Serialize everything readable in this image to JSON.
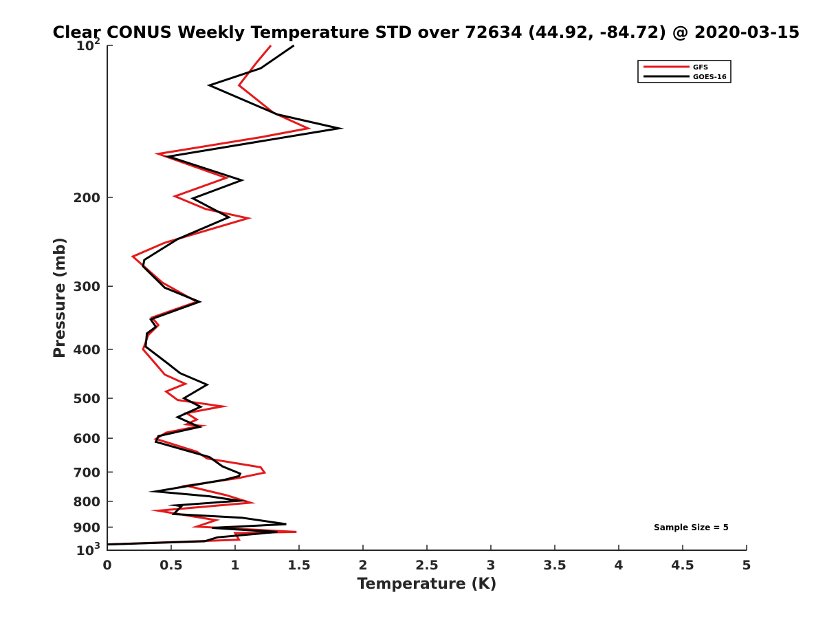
{
  "chart_data": {
    "type": "line",
    "title": "Clear CONUS Weekly Temperature STD over 72634 (44.92, -84.72) @ 2020-03-15",
    "xlabel": "Temperature (K)",
    "ylabel": "Pressure (mb)",
    "xlim": [
      0,
      5
    ],
    "ylim": [
      100,
      1000
    ],
    "y_scale": "log",
    "y_reversed": true,
    "grid": false,
    "legend_position": "top-right",
    "x_ticks": [
      "0",
      "0.5",
      "1",
      "1.5",
      "2",
      "2.5",
      "3",
      "3.5",
      "4",
      "4.5",
      "5"
    ],
    "y_ticks": [
      {
        "value": 100,
        "base": "10",
        "exp": "2"
      },
      {
        "value": 200,
        "label": "200"
      },
      {
        "value": 300,
        "label": "300"
      },
      {
        "value": 400,
        "label": "400"
      },
      {
        "value": 500,
        "label": "500"
      },
      {
        "value": 600,
        "label": "600"
      },
      {
        "value": 700,
        "label": "700"
      },
      {
        "value": 800,
        "label": "800"
      },
      {
        "value": 900,
        "label": "900"
      },
      {
        "value": 1000,
        "base": "10",
        "exp": "3"
      }
    ],
    "annotation": "Sample Size = 5",
    "series": [
      {
        "name": "GFS",
        "color": "#e41a1c",
        "points": [
          [
            1.28,
            100
          ],
          [
            1.17,
            108
          ],
          [
            1.03,
            120
          ],
          [
            1.3,
            136
          ],
          [
            1.57,
            146
          ],
          [
            1.2,
            152
          ],
          [
            0.4,
            164
          ],
          [
            0.93,
            183
          ],
          [
            0.53,
            199
          ],
          [
            0.77,
            211
          ],
          [
            1.1,
            220
          ],
          [
            0.45,
            246
          ],
          [
            0.2,
            262
          ],
          [
            0.43,
            295
          ],
          [
            0.7,
            322
          ],
          [
            0.35,
            346
          ],
          [
            0.4,
            358
          ],
          [
            0.32,
            375
          ],
          [
            0.28,
            400
          ],
          [
            0.38,
            428
          ],
          [
            0.45,
            449
          ],
          [
            0.61,
            468
          ],
          [
            0.46,
            485
          ],
          [
            0.55,
            504
          ],
          [
            0.9,
            519
          ],
          [
            0.62,
            535
          ],
          [
            0.7,
            551
          ],
          [
            0.62,
            563
          ],
          [
            0.73,
            567
          ],
          [
            0.46,
            585
          ],
          [
            0.38,
            602
          ],
          [
            0.7,
            638
          ],
          [
            0.78,
            658
          ],
          [
            1.2,
            685
          ],
          [
            1.23,
            702
          ],
          [
            1.02,
            720
          ],
          [
            0.62,
            745
          ],
          [
            0.93,
            778
          ],
          [
            1.12,
            805
          ],
          [
            0.4,
            835
          ],
          [
            0.5,
            843
          ],
          [
            0.85,
            872
          ],
          [
            0.7,
            898
          ],
          [
            1.48,
            920
          ],
          [
            1.0,
            925
          ],
          [
            1.03,
            953
          ],
          [
            0.0,
            974
          ]
        ]
      },
      {
        "name": "GOES-16",
        "color": "#000000",
        "points": [
          [
            1.46,
            100
          ],
          [
            1.2,
            111
          ],
          [
            0.8,
            120
          ],
          [
            1.33,
            137
          ],
          [
            1.81,
            146
          ],
          [
            0.48,
            166
          ],
          [
            1.05,
            185
          ],
          [
            0.67,
            201
          ],
          [
            0.95,
            219
          ],
          [
            0.55,
            242
          ],
          [
            0.29,
            266
          ],
          [
            0.28,
            274
          ],
          [
            0.45,
            302
          ],
          [
            0.72,
            322
          ],
          [
            0.34,
            349
          ],
          [
            0.38,
            361
          ],
          [
            0.31,
            372
          ],
          [
            0.3,
            395
          ],
          [
            0.47,
            426
          ],
          [
            0.57,
            446
          ],
          [
            0.78,
            470
          ],
          [
            0.6,
            500
          ],
          [
            0.73,
            520
          ],
          [
            0.55,
            545
          ],
          [
            0.72,
            570
          ],
          [
            0.4,
            594
          ],
          [
            0.38,
            610
          ],
          [
            0.8,
            654
          ],
          [
            0.9,
            682
          ],
          [
            1.04,
            705
          ],
          [
            1.03,
            713
          ],
          [
            0.92,
            725
          ],
          [
            0.38,
            765
          ],
          [
            0.8,
            782
          ],
          [
            1.03,
            798
          ],
          [
            0.54,
            815
          ],
          [
            0.58,
            818
          ],
          [
            0.52,
            848
          ],
          [
            1.05,
            862
          ],
          [
            1.4,
            888
          ],
          [
            0.82,
            903
          ],
          [
            1.33,
            920
          ],
          [
            0.86,
            943
          ],
          [
            0.76,
            960
          ],
          [
            0.0,
            974
          ]
        ]
      }
    ]
  }
}
